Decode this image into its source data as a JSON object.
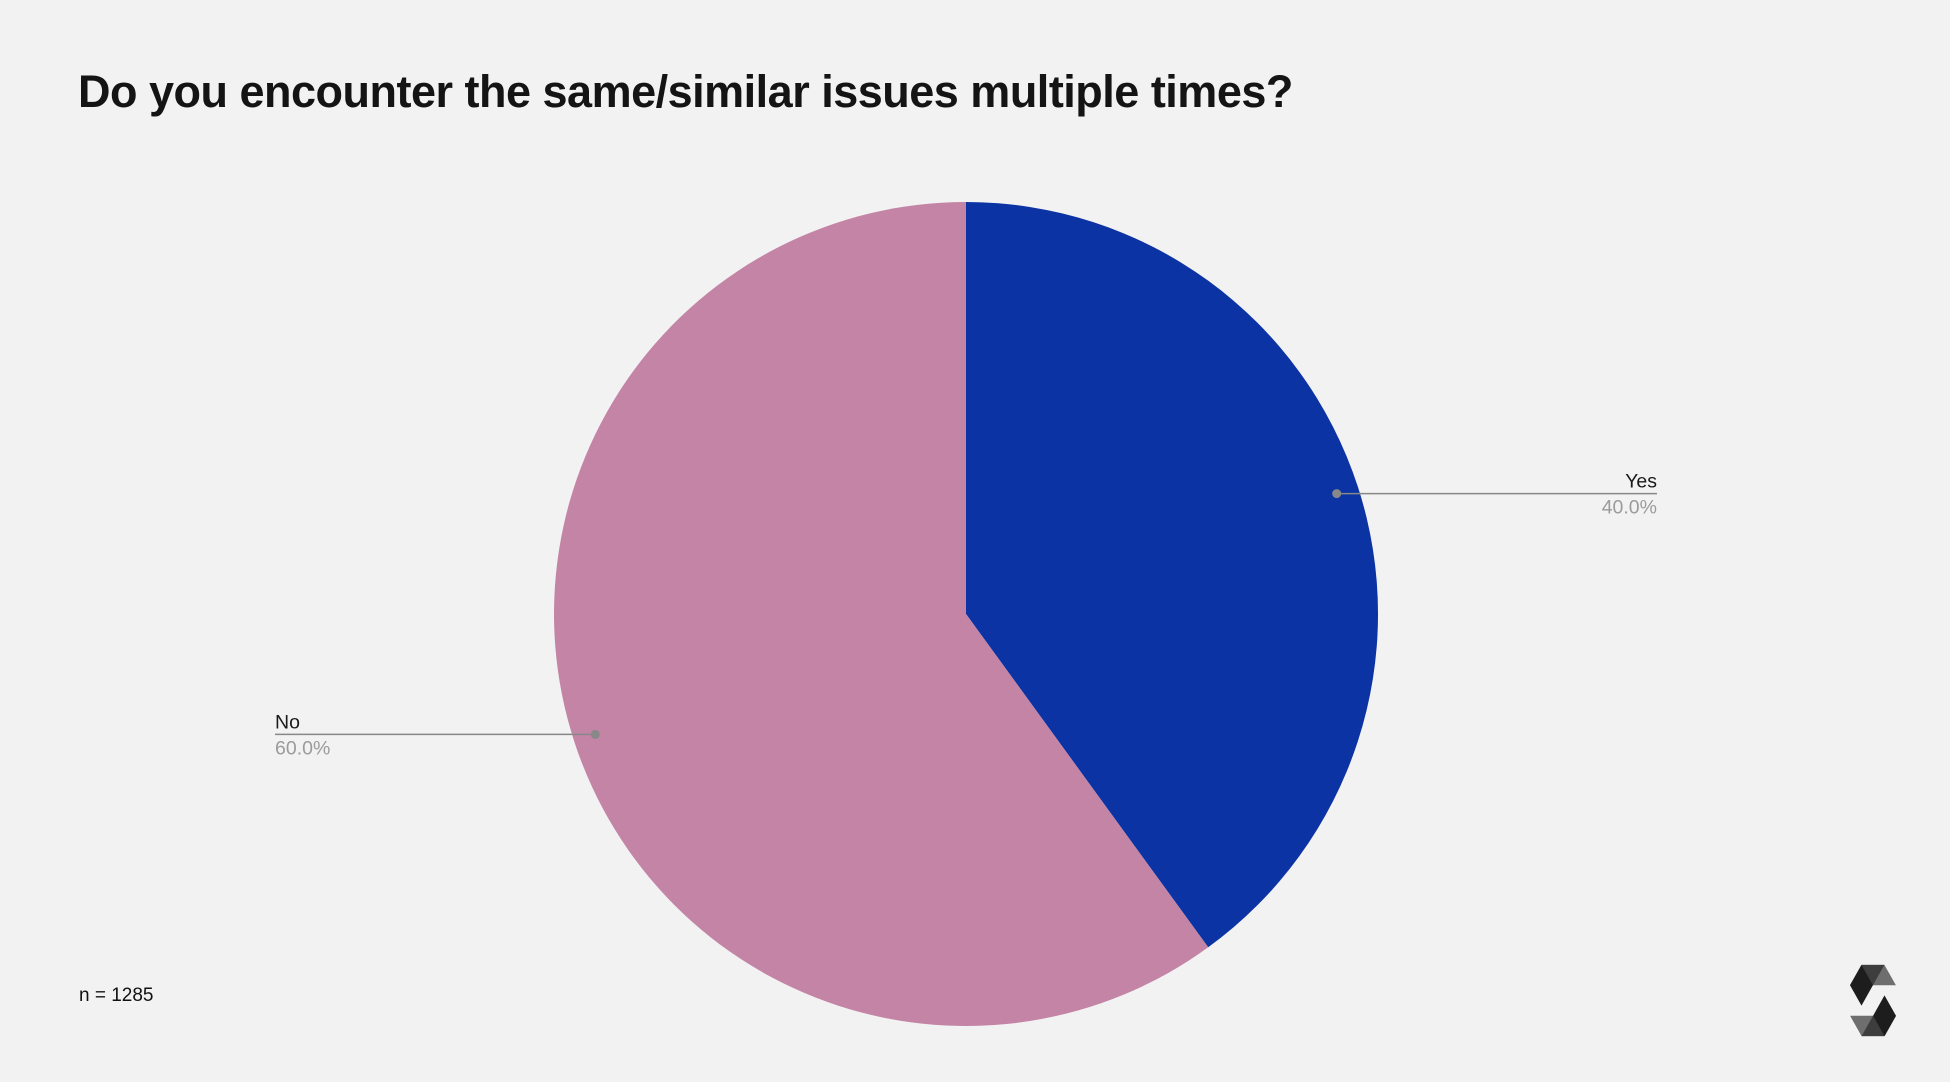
{
  "title": "Do you encounter the same/similar issues multiple times?",
  "footer": {
    "sample_size_label": "n = 1285"
  },
  "branding": {
    "logo_name": "solidity-logo"
  },
  "colors": {
    "background": "#f2f2f2",
    "title_text": "#141414",
    "leader_line": "#888888",
    "slice_label_text": "#1a1a1a",
    "percent_text": "#9b9b9b"
  },
  "chart_data": {
    "type": "pie",
    "title": "Do you encounter the same/similar issues multiple times?",
    "labels": [
      "Yes",
      "No"
    ],
    "values": [
      40.0,
      60.0
    ],
    "display_values": [
      "40.0%",
      "60.0%"
    ],
    "colors": [
      "#0b33a3",
      "#c384a6"
    ],
    "start_angle_deg": -90,
    "direction": "clockwise",
    "legend": "none",
    "label_style": "outside-leader-line-callouts",
    "sample_size": 1285
  }
}
